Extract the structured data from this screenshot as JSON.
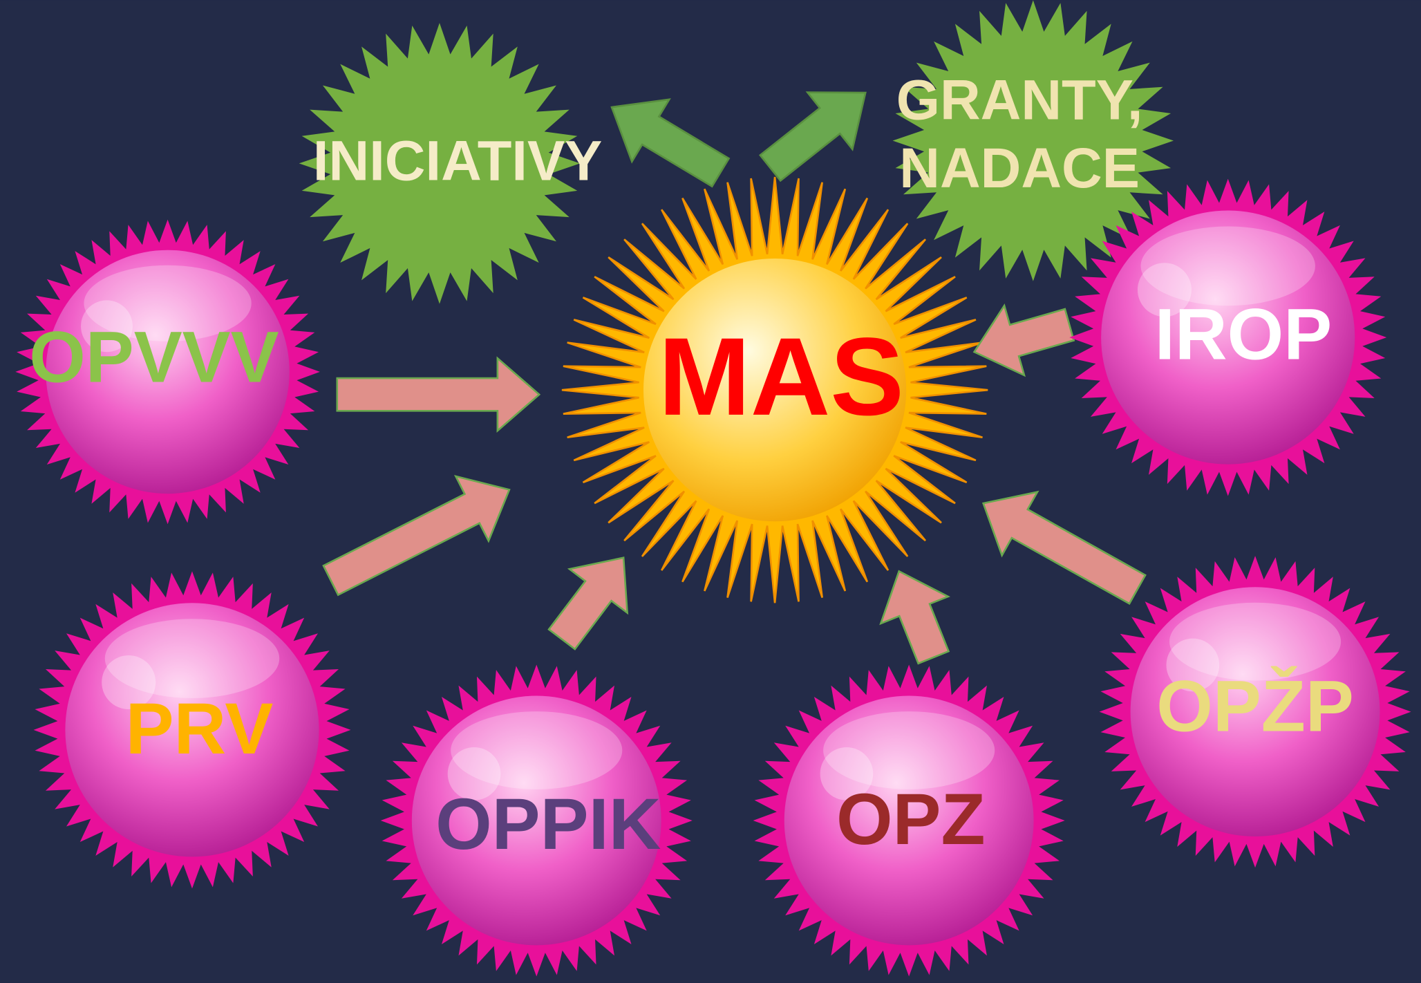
{
  "center": {
    "label": "MAS"
  },
  "sources": [
    {
      "label": "OPVVV"
    },
    {
      "label": "PRV"
    },
    {
      "label": "OPPIK"
    },
    {
      "label": "OPZ"
    },
    {
      "label": "OPŽP"
    },
    {
      "label": "IROP"
    }
  ],
  "outputs": [
    {
      "lines": [
        "INICIATIVY"
      ]
    },
    {
      "lines": [
        "GRANTY,",
        "NADACE"
      ]
    }
  ]
}
